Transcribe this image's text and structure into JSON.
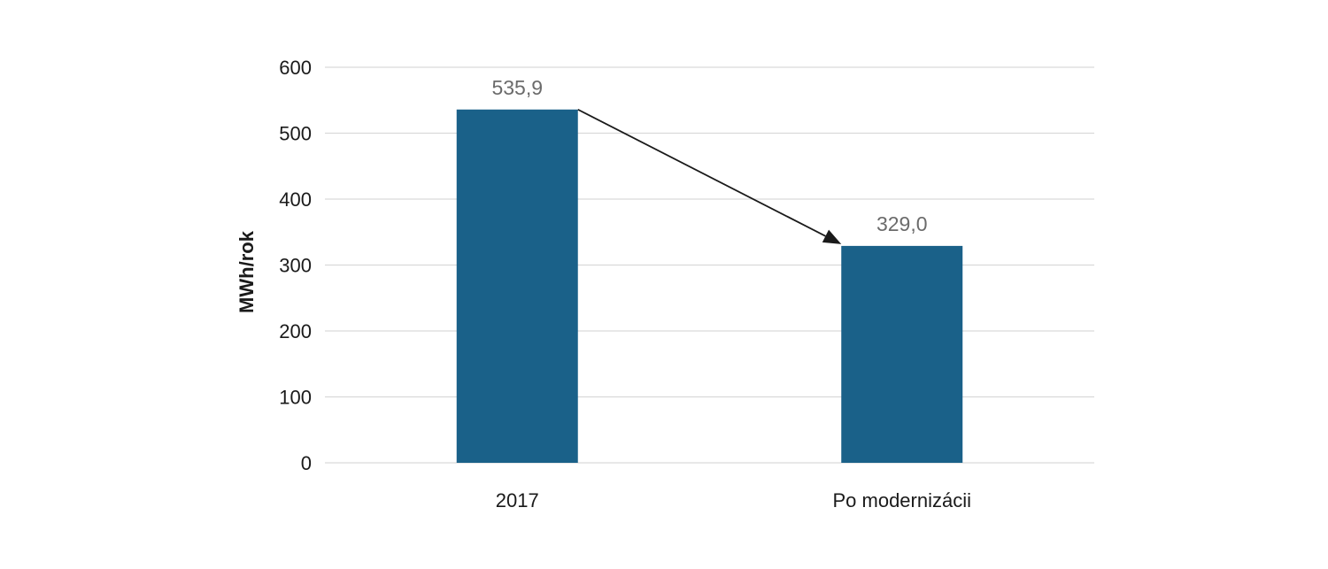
{
  "chart_data": {
    "type": "bar",
    "categories": [
      "2017",
      "Po modernizácii"
    ],
    "values": [
      535.9,
      329.0
    ],
    "value_labels": [
      "535,9",
      "329,0"
    ],
    "title": "",
    "xlabel": "",
    "ylabel": "MWh/rok",
    "ylim": [
      0,
      600
    ],
    "yticks": [
      0,
      100,
      200,
      300,
      400,
      500,
      600
    ],
    "ytick_labels": [
      "0",
      "100",
      "200",
      "300",
      "400",
      "500",
      "600"
    ],
    "grid": true,
    "legend": "none",
    "bar_color": "#1a6189",
    "annotations": [
      {
        "type": "arrow",
        "from_category": "2017",
        "to_category": "Po modernizácii"
      }
    ]
  }
}
